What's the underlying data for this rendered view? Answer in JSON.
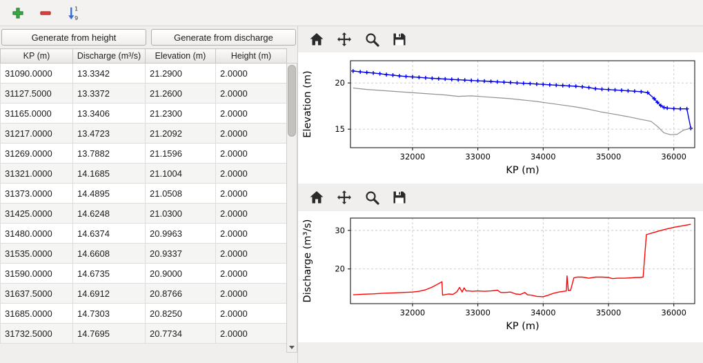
{
  "main_toolbar": {
    "sort_labels": [
      "1",
      "9"
    ],
    "icons": [
      "add-icon",
      "remove-icon",
      "sort-numeric-icon"
    ]
  },
  "buttons": {
    "generate_height": "Generate from height",
    "generate_discharge": "Generate from discharge"
  },
  "table": {
    "columns": [
      "KP (m)",
      "Discharge (m³/s)",
      "Elevation (m)",
      "Height (m)"
    ],
    "rows": [
      [
        "31090.0000",
        "13.3342",
        "21.2900",
        "2.0000"
      ],
      [
        "31127.5000",
        "13.3372",
        "21.2600",
        "2.0000"
      ],
      [
        "31165.0000",
        "13.3406",
        "21.2300",
        "2.0000"
      ],
      [
        "31217.0000",
        "13.4723",
        "21.2092",
        "2.0000"
      ],
      [
        "31269.0000",
        "13.7882",
        "21.1596",
        "2.0000"
      ],
      [
        "31321.0000",
        "14.1685",
        "21.1004",
        "2.0000"
      ],
      [
        "31373.0000",
        "14.4895",
        "21.0508",
        "2.0000"
      ],
      [
        "31425.0000",
        "14.6248",
        "21.0300",
        "2.0000"
      ],
      [
        "31480.0000",
        "14.6374",
        "20.9963",
        "2.0000"
      ],
      [
        "31535.0000",
        "14.6608",
        "20.9337",
        "2.0000"
      ],
      [
        "31590.0000",
        "14.6735",
        "20.9000",
        "2.0000"
      ],
      [
        "31637.5000",
        "14.6912",
        "20.8766",
        "2.0000"
      ],
      [
        "31685.0000",
        "14.7303",
        "20.8250",
        "2.0000"
      ],
      [
        "31732.5000",
        "14.7695",
        "20.7734",
        "2.0000"
      ]
    ]
  },
  "plot_toolbar": {
    "icons": [
      "home-icon",
      "pan-icon",
      "zoom-icon",
      "save-icon"
    ]
  },
  "colors": {
    "elevation_line": "#0000ee",
    "ground_line": "#909090",
    "discharge_line": "#ff0000",
    "grid": "#c8c8c8",
    "add_icon": "#3aa845",
    "remove_icon": "#e0413d",
    "sort_icon": "#3a6cd4"
  },
  "chart_data": [
    {
      "type": "line",
      "title": "",
      "xlabel": "KP (m)",
      "ylabel": "Elevation (m)",
      "xlim": [
        31050,
        36320
      ],
      "ylim": [
        13.0,
        22.4
      ],
      "xticks": [
        32000,
        33000,
        34000,
        35000,
        36000
      ],
      "yticks": [
        15,
        20
      ],
      "grid": true,
      "legend": "none",
      "series": [
        {
          "name": "water-elevation",
          "color": "#0000ee",
          "marker": "plus",
          "width": 1.4,
          "x": [
            31090,
            31200,
            31300,
            31400,
            31500,
            31600,
            31700,
            31800,
            31900,
            32000,
            32100,
            32200,
            32300,
            32400,
            32500,
            32600,
            32700,
            32800,
            32900,
            33000,
            33100,
            33200,
            33300,
            33400,
            33500,
            33600,
            33700,
            33800,
            33900,
            34000,
            34100,
            34200,
            34300,
            34400,
            34500,
            34600,
            34700,
            34800,
            34900,
            35000,
            35100,
            35200,
            35300,
            35400,
            35500,
            35600,
            35700,
            35750,
            35800,
            35850,
            35900,
            36000,
            36100,
            36200,
            36260
          ],
          "y": [
            21.29,
            21.2,
            21.13,
            21.07,
            21.0,
            20.9,
            20.84,
            20.76,
            20.7,
            20.65,
            20.6,
            20.55,
            20.5,
            20.46,
            20.42,
            20.38,
            20.34,
            20.3,
            20.27,
            20.23,
            20.2,
            20.16,
            20.12,
            20.08,
            20.04,
            20.0,
            19.96,
            19.92,
            19.88,
            19.84,
            19.8,
            19.76,
            19.72,
            19.68,
            19.64,
            19.58,
            19.5,
            19.38,
            19.32,
            19.28,
            19.24,
            19.2,
            19.15,
            19.1,
            19.05,
            18.95,
            18.3,
            17.9,
            17.55,
            17.35,
            17.28,
            17.22,
            17.2,
            17.2,
            15.1
          ]
        },
        {
          "name": "ground-elevation",
          "color": "#909090",
          "marker": null,
          "width": 1.2,
          "x": [
            31090,
            31300,
            31600,
            31900,
            32200,
            32500,
            32700,
            32900,
            33100,
            33300,
            33500,
            33700,
            33900,
            34100,
            34300,
            34500,
            34700,
            34900,
            35100,
            35300,
            35500,
            35650,
            35750,
            35850,
            35950,
            36050,
            36150,
            36260
          ],
          "y": [
            19.45,
            19.3,
            19.15,
            19.0,
            18.85,
            18.7,
            18.55,
            18.6,
            18.5,
            18.4,
            18.3,
            18.15,
            18.0,
            17.8,
            17.6,
            17.4,
            17.15,
            16.85,
            16.6,
            16.35,
            16.05,
            15.85,
            15.3,
            14.6,
            14.4,
            14.45,
            14.9,
            15.1
          ]
        }
      ]
    },
    {
      "type": "line",
      "title": "",
      "xlabel": "KP (m)",
      "ylabel": "Discharge (m³/s)",
      "xlim": [
        31050,
        36320
      ],
      "ylim": [
        11.0,
        33.2
      ],
      "xticks": [
        32000,
        33000,
        34000,
        35000,
        36000
      ],
      "yticks": [
        20,
        30
      ],
      "grid": true,
      "legend": "none",
      "series": [
        {
          "name": "discharge",
          "color": "#ff0000",
          "marker": null,
          "width": 1.4,
          "x": [
            31090,
            31250,
            31400,
            31550,
            31700,
            31850,
            32000,
            32100,
            32200,
            32300,
            32400,
            32450,
            32460,
            32550,
            32620,
            32680,
            32720,
            32760,
            32790,
            32820,
            32860,
            32920,
            33000,
            33100,
            33200,
            33300,
            33350,
            33420,
            33500,
            33580,
            33650,
            33720,
            33760,
            33820,
            33900,
            34000,
            34080,
            34160,
            34240,
            34320,
            34355,
            34365,
            34385,
            34420,
            34470,
            34520,
            34600,
            34700,
            34800,
            34900,
            35000,
            35060,
            35150,
            35250,
            35350,
            35430,
            35480,
            35530,
            35580,
            35700,
            35800,
            35900,
            36000,
            36100,
            36200,
            36260
          ],
          "y": [
            13.3,
            13.45,
            13.55,
            13.7,
            13.8,
            13.9,
            14.0,
            14.2,
            14.6,
            15.3,
            16.2,
            16.7,
            13.2,
            13.5,
            13.4,
            14.1,
            15.2,
            14.0,
            15.1,
            14.3,
            14.3,
            14.2,
            14.3,
            14.2,
            14.3,
            14.5,
            13.9,
            13.9,
            14.0,
            13.5,
            13.4,
            13.9,
            13.3,
            13.2,
            12.9,
            12.8,
            13.2,
            13.7,
            14.0,
            14.2,
            14.3,
            18.2,
            14.4,
            14.5,
            17.7,
            17.9,
            17.9,
            17.6,
            17.9,
            17.9,
            17.8,
            17.5,
            17.6,
            17.6,
            17.7,
            17.8,
            17.8,
            17.9,
            28.9,
            29.5,
            30.0,
            30.4,
            30.8,
            31.1,
            31.4,
            31.6
          ]
        }
      ]
    }
  ]
}
